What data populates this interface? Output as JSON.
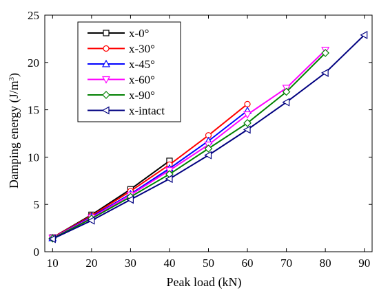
{
  "chart_data": {
    "type": "line",
    "xlabel": "Peak load (kN)",
    "ylabel": "Damping energy (J/m",
    "ylabel_sup": "3",
    "ylabel_close": ")",
    "xlim": [
      8,
      92
    ],
    "ylim": [
      0,
      25
    ],
    "xticks": [
      10,
      20,
      30,
      40,
      50,
      60,
      70,
      80,
      90
    ],
    "xtick_labels": [
      "10",
      "20",
      "30",
      "40",
      "50",
      "60",
      "70",
      "80",
      "90"
    ],
    "yticks": [
      0,
      5,
      10,
      15,
      20,
      25
    ],
    "ytick_labels": [
      "0",
      "5",
      "10",
      "15",
      "20",
      "25"
    ],
    "grid": false,
    "legend_position": "top-left",
    "series": [
      {
        "name": "x-0°",
        "color": "#000000",
        "marker": "square",
        "x": [
          10,
          20,
          30,
          40
        ],
        "y": [
          1.5,
          3.9,
          6.6,
          9.6
        ]
      },
      {
        "name": "x-30°",
        "color": "#ff0000",
        "marker": "circle",
        "x": [
          10,
          20,
          30,
          40,
          50,
          60
        ],
        "y": [
          1.5,
          3.8,
          6.4,
          9.2,
          12.3,
          15.6
        ]
      },
      {
        "name": "x-45°",
        "color": "#0000ff",
        "marker": "triangle-up",
        "x": [
          10,
          20,
          30,
          40,
          50,
          60
        ],
        "y": [
          1.45,
          3.7,
          6.1,
          8.8,
          11.7,
          14.9
        ]
      },
      {
        "name": "x-60°",
        "color": "#ff00ff",
        "marker": "triangle-down",
        "x": [
          10,
          20,
          30,
          40,
          50,
          60,
          70,
          80
        ],
        "y": [
          1.45,
          3.6,
          6.0,
          8.6,
          11.3,
          14.5,
          17.3,
          21.3
        ]
      },
      {
        "name": "x-90°",
        "color": "#008000",
        "marker": "diamond",
        "x": [
          10,
          20,
          30,
          40,
          50,
          60,
          70,
          80
        ],
        "y": [
          1.4,
          3.5,
          5.8,
          8.2,
          10.9,
          13.6,
          16.9,
          21.0
        ]
      },
      {
        "name": "x-intact",
        "color": "#000080",
        "marker": "triangle-left",
        "x": [
          10,
          20,
          30,
          40,
          50,
          60,
          70,
          80,
          90
        ],
        "y": [
          1.35,
          3.3,
          5.5,
          7.7,
          10.2,
          12.9,
          15.8,
          18.9,
          22.9
        ]
      }
    ]
  }
}
